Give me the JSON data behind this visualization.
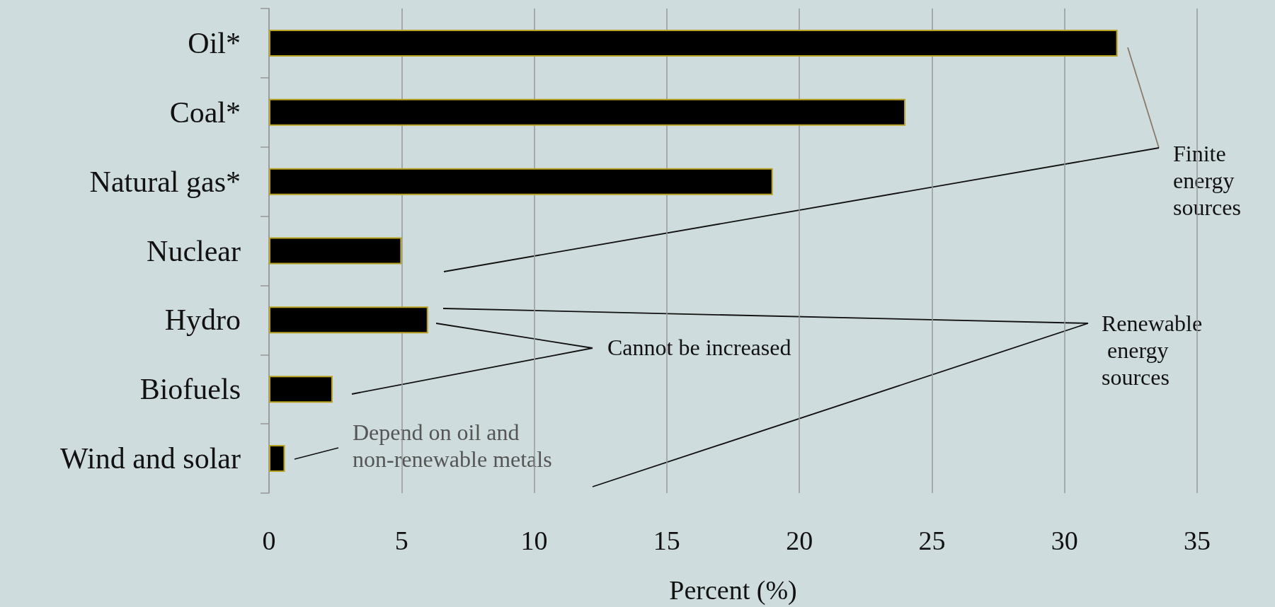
{
  "chart_data": {
    "type": "bar",
    "orientation": "horizontal",
    "xlabel": "Percent (%)",
    "categories": [
      "Oil*",
      "Coal*",
      "Natural gas*",
      "Nuclear",
      "Hydro",
      "Biofuels",
      "Wind and solar"
    ],
    "values": [
      32,
      24,
      19,
      5,
      6,
      2.4,
      0.6
    ],
    "color": "#000000",
    "xlim": [
      0,
      35
    ],
    "xticks": [
      0,
      5,
      10,
      15,
      20,
      25,
      30,
      35
    ],
    "grid": "x",
    "annotations": [
      "Finite energy sources",
      "Renewable energy sources",
      "Cannot be increased",
      "Depend on oil and non-renewable metals"
    ]
  }
}
